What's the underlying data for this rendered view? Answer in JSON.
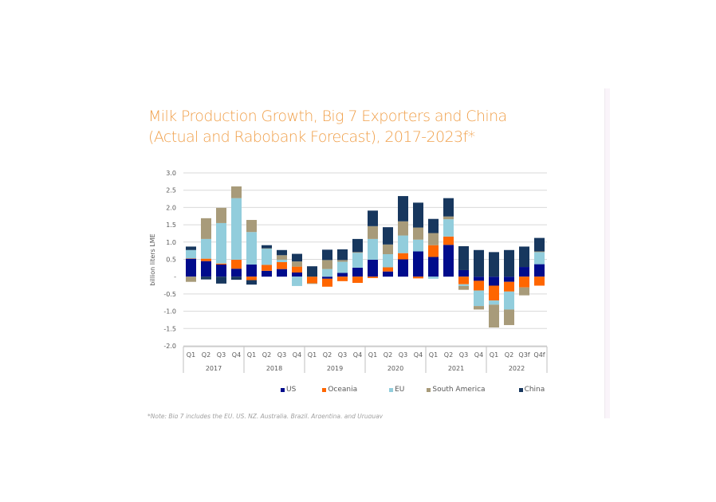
{
  "chart_data": {
    "type": "bar",
    "stacked": true,
    "title": "Milk Production Growth, Big 7 Exporters and China (Actual and Rabobank Forecast), 2017-2023f*",
    "title_lines": [
      "Milk Production Growth, Big 7 Exporters and China",
      "(Actual and Rabobank Forecast), 2017-2023f*"
    ],
    "xlabel": "",
    "ylabel": "billion liters LME",
    "ylim": [
      -2.0,
      3.0
    ],
    "yticks": [
      3.0,
      2.5,
      2.0,
      1.5,
      1.0,
      0.5,
      0,
      -0.5,
      -1.0,
      -1.5,
      -2.0
    ],
    "ytick_labels": [
      "3.0",
      "2.5",
      "2.0",
      "1.5",
      "1.0",
      "0.5",
      "-",
      "-0.5",
      "-1.0",
      "-1.5",
      "-2.0"
    ],
    "grid": true,
    "legend_position": "bottom",
    "categories": [
      "Q1",
      "Q2",
      "Q3",
      "Q4",
      "Q1",
      "Q2",
      "Q3",
      "Q4",
      "Q1",
      "Q2",
      "Q3",
      "Q4",
      "Q1",
      "Q2",
      "Q3",
      "Q4",
      "Q1",
      "Q2",
      "Q3",
      "Q4",
      "Q1",
      "Q2",
      "Q3f",
      "Q4f"
    ],
    "groups": [
      {
        "label": "2017",
        "count": 4
      },
      {
        "label": "2018",
        "count": 4
      },
      {
        "label": "2019",
        "count": 4
      },
      {
        "label": "2020",
        "count": 4
      },
      {
        "label": "2021",
        "count": 4
      },
      {
        "label": "2022",
        "count": 4
      }
    ],
    "series": [
      {
        "name": "US",
        "color": "#000c8c",
        "values": [
          0.52,
          0.45,
          0.35,
          0.23,
          0.35,
          0.17,
          0.22,
          0.12,
          0.0,
          -0.06,
          0.11,
          0.26,
          0.49,
          0.15,
          0.5,
          0.73,
          0.57,
          0.92,
          0.19,
          -0.12,
          -0.26,
          -0.15,
          0.28,
          0.36
        ]
      },
      {
        "name": "Oceania",
        "color": "#ff6600",
        "values": [
          0.01,
          0.07,
          0.03,
          0.26,
          -0.1,
          0.17,
          0.2,
          0.17,
          -0.19,
          -0.23,
          -0.13,
          -0.18,
          -0.04,
          0.12,
          0.18,
          -0.05,
          0.34,
          0.24,
          -0.22,
          -0.28,
          -0.43,
          -0.28,
          -0.31,
          -0.26
        ]
      },
      {
        "name": "EU",
        "color": "#92cddc",
        "values": [
          0.24,
          0.57,
          1.17,
          1.78,
          0.94,
          0.47,
          0.07,
          -0.27,
          0.0,
          0.22,
          0.32,
          0.43,
          0.6,
          0.38,
          0.51,
          0.34,
          -0.06,
          0.5,
          -0.05,
          -0.45,
          -0.12,
          -0.52,
          0.0,
          0.35
        ]
      },
      {
        "name": "South America",
        "color": "#a89b7a",
        "values": [
          -0.15,
          0.6,
          0.44,
          0.34,
          0.35,
          0.01,
          0.13,
          0.15,
          -0.02,
          0.26,
          0.05,
          0.02,
          0.37,
          0.28,
          0.41,
          0.35,
          0.35,
          0.08,
          -0.11,
          -0.1,
          -0.66,
          -0.45,
          -0.23,
          0.02
        ]
      },
      {
        "name": "China",
        "color": "#17375e",
        "values": [
          0.1,
          -0.08,
          -0.2,
          -0.09,
          -0.13,
          0.09,
          0.15,
          0.22,
          0.3,
          0.3,
          0.31,
          0.38,
          0.45,
          0.5,
          0.73,
          0.72,
          0.41,
          0.53,
          0.69,
          0.77,
          0.71,
          0.77,
          0.59,
          0.39
        ]
      }
    ]
  },
  "footnote": "*Note: Big 7 includes the EU, US, NZ, Australia, Brazil, Argentina, and Uruguay"
}
